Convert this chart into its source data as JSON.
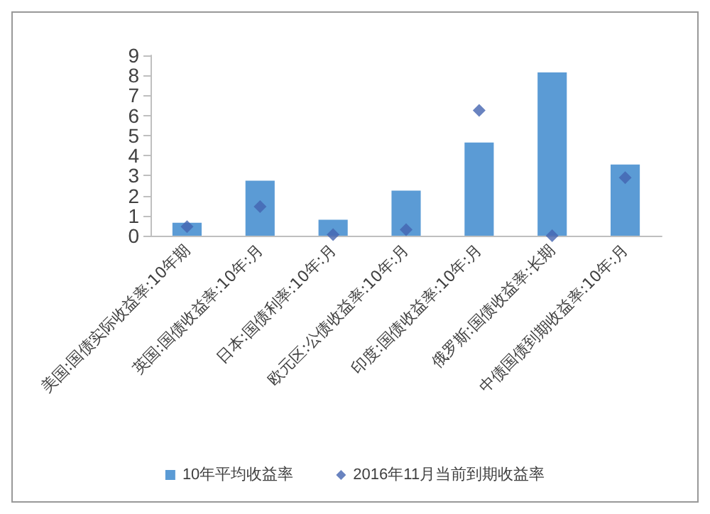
{
  "chart_data": {
    "type": "bar",
    "categories": [
      "美国:国债实际收益率:10年期",
      "英国:国债收益率:10年:月",
      "日本:国债利率:10年:月",
      "欧元区:公债收益率:10年:月",
      "印度:国债收益率:10年:月",
      "俄罗斯:国债收益率:长期",
      "中债国债到期收益率:10年:月"
    ],
    "series": [
      {
        "name": "10年平均收益率",
        "color": "#5b9bd5",
        "values": [
          0.65,
          2.75,
          0.8,
          2.25,
          4.65,
          8.15,
          3.55
        ]
      },
      {
        "name": "2016年11月当前到期收益率",
        "type": "scatter",
        "color": "#4464b0",
        "values": [
          0.45,
          1.45,
          0.05,
          0.3,
          6.25,
          0,
          2.9
        ]
      }
    ],
    "ylim": [
      0,
      9
    ],
    "yticks": [
      0,
      1,
      2,
      3,
      4,
      5,
      6,
      7,
      8,
      9
    ],
    "grid": false,
    "legend": "bottom",
    "marker": "diamond"
  }
}
